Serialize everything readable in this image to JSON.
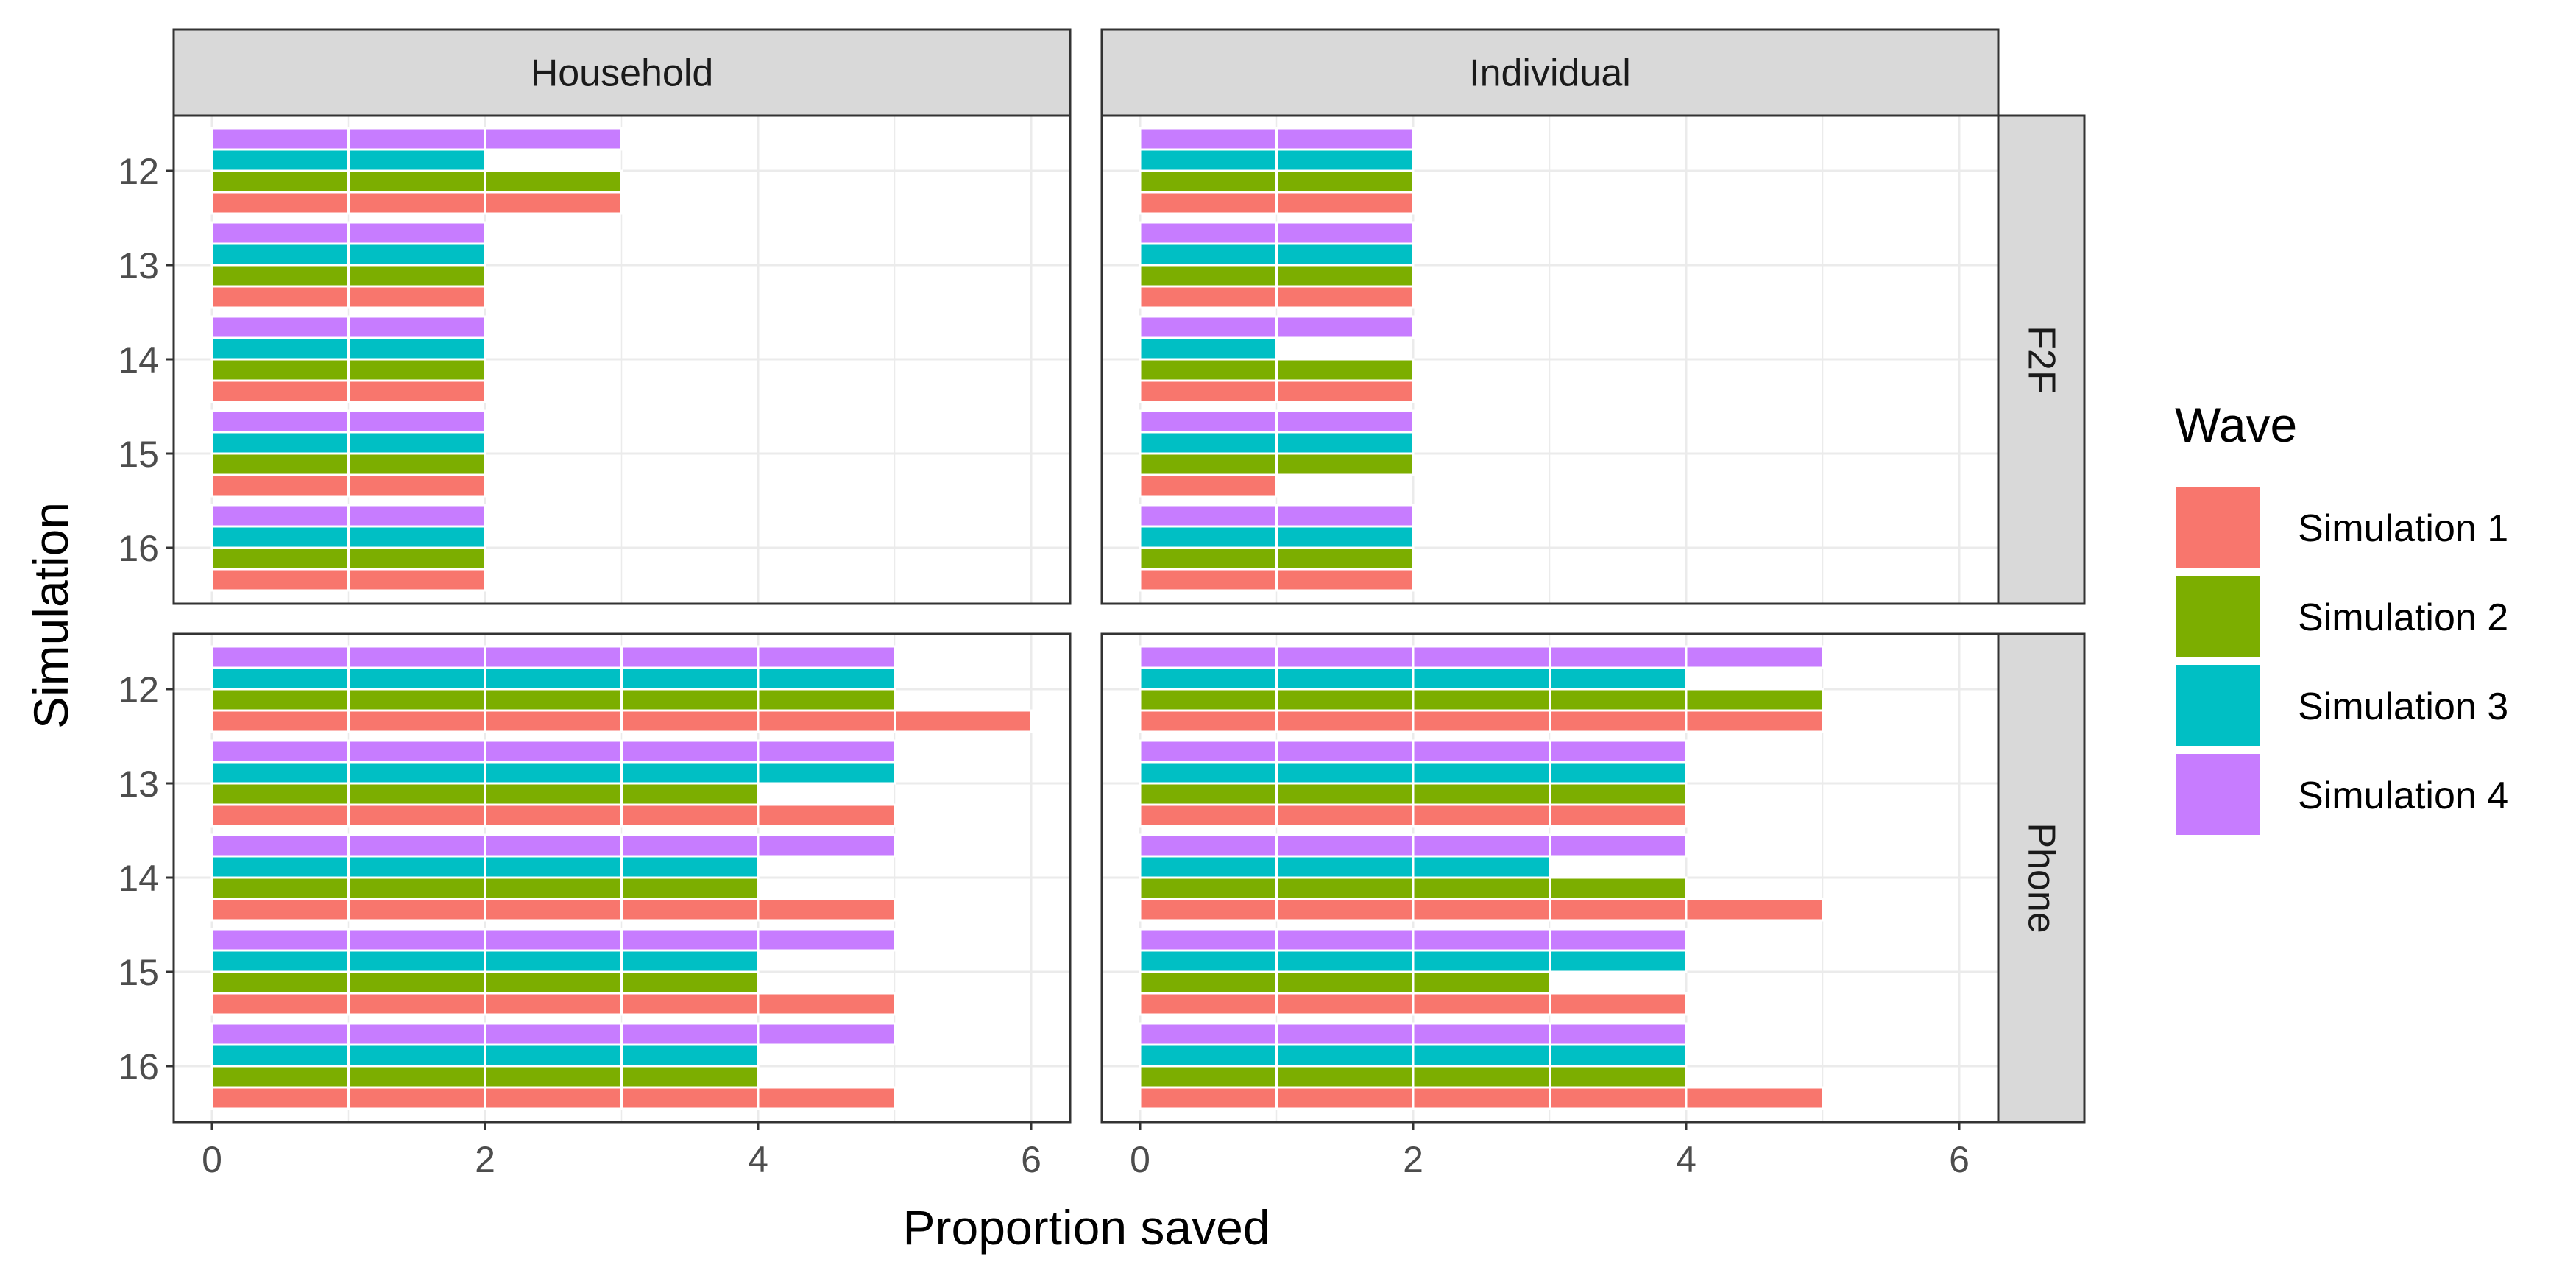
{
  "chart_data": {
    "type": "bar",
    "orientation": "horizontal",
    "xlabel": "Proportion saved",
    "ylabel": "Simulation",
    "xlim": [
      0,
      6.3
    ],
    "x_ticks": [
      "0",
      "2",
      "4",
      "6"
    ],
    "categories": [
      "12",
      "13",
      "14",
      "15",
      "16"
    ],
    "facet_columns": [
      "Household",
      "Individual"
    ],
    "facet_rows": [
      "F2F",
      "Phone"
    ],
    "grid": true,
    "legend": {
      "title": "Wave",
      "position": "right",
      "entries": [
        "Simulation 1",
        "Simulation 2",
        "Simulation 3",
        "Simulation 4"
      ],
      "colors": [
        "#F8766D",
        "#7CAE00",
        "#00BFC4",
        "#C77CFF"
      ]
    },
    "panels": [
      {
        "col": "Household",
        "row": "F2F",
        "series": [
          {
            "name": "Simulation 1",
            "values": [
              3,
              2,
              2,
              2,
              2
            ]
          },
          {
            "name": "Simulation 2",
            "values": [
              3,
              2,
              2,
              2,
              2
            ]
          },
          {
            "name": "Simulation 3",
            "values": [
              2,
              2,
              2,
              2,
              2
            ]
          },
          {
            "name": "Simulation 4",
            "values": [
              3,
              2,
              2,
              2,
              2
            ]
          }
        ]
      },
      {
        "col": "Individual",
        "row": "F2F",
        "series": [
          {
            "name": "Simulation 1",
            "values": [
              2,
              2,
              2,
              1,
              2
            ]
          },
          {
            "name": "Simulation 2",
            "values": [
              2,
              2,
              2,
              2,
              2
            ]
          },
          {
            "name": "Simulation 3",
            "values": [
              2,
              2,
              1,
              2,
              2
            ]
          },
          {
            "name": "Simulation 4",
            "values": [
              2,
              2,
              2,
              2,
              2
            ]
          }
        ]
      },
      {
        "col": "Household",
        "row": "Phone",
        "series": [
          {
            "name": "Simulation 1",
            "values": [
              6,
              5,
              5,
              5,
              5
            ]
          },
          {
            "name": "Simulation 2",
            "values": [
              5,
              4,
              4,
              4,
              4
            ]
          },
          {
            "name": "Simulation 3",
            "values": [
              5,
              5,
              4,
              4,
              4
            ]
          },
          {
            "name": "Simulation 4",
            "values": [
              5,
              5,
              5,
              5,
              5
            ]
          }
        ]
      },
      {
        "col": "Individual",
        "row": "Phone",
        "series": [
          {
            "name": "Simulation 1",
            "values": [
              5,
              4,
              5,
              4,
              5
            ]
          },
          {
            "name": "Simulation 2",
            "values": [
              5,
              4,
              4,
              3,
              4
            ]
          },
          {
            "name": "Simulation 3",
            "values": [
              4,
              4,
              3,
              4,
              4
            ]
          },
          {
            "name": "Simulation 4",
            "values": [
              5,
              4,
              4,
              4,
              4
            ]
          }
        ]
      }
    ]
  }
}
